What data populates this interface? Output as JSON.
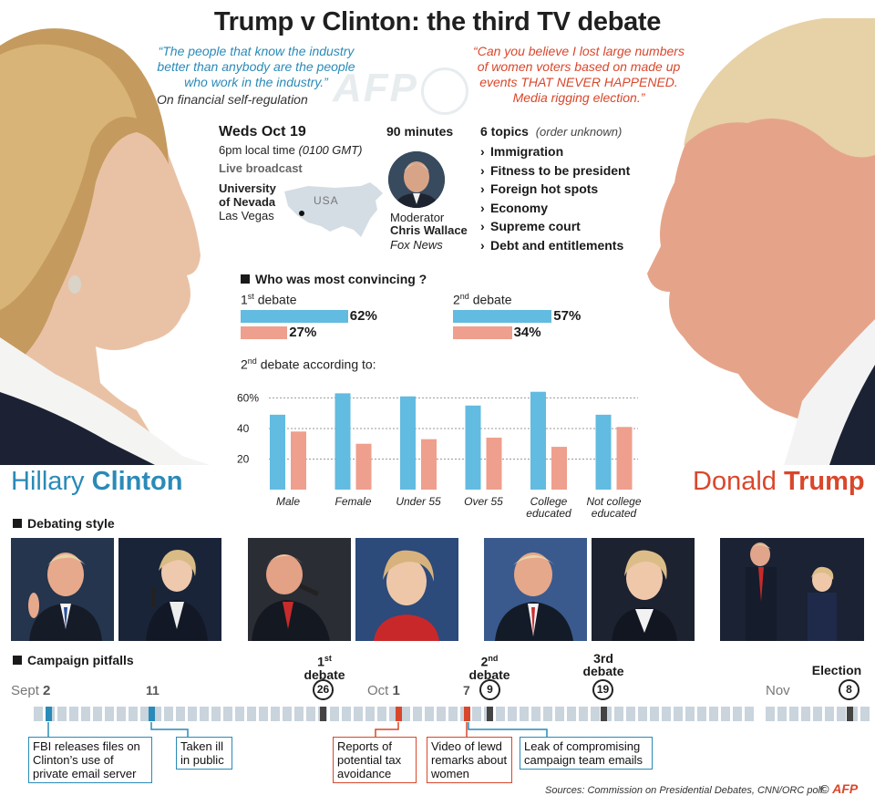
{
  "title": "Trump v Clinton: the third TV debate",
  "clinton_quote": {
    "text": "“The people that know the industry better than anybody are the people who work in the industry.”",
    "source": "On financial self-regulation"
  },
  "trump_quote": {
    "text": "“Can you believe I lost large numbers of women voters based on made up events THAT NEVER HAPPENED. Media rigging election.”"
  },
  "watermark": "AFP",
  "event": {
    "date": "Weds Oct 19",
    "time": "6pm local time",
    "time_gmt": "(0100 GMT)",
    "broadcast": "Live broadcast",
    "venue_line1": "University",
    "venue_line2": "of Nevada",
    "city": "Las Vegas",
    "map_label": "USA",
    "duration": "90 minutes",
    "moderator_label": "Moderator",
    "moderator_name": "Chris Wallace",
    "moderator_org": "Fox News"
  },
  "topics": {
    "heading": "6 topics",
    "note": "(order unknown)",
    "items": [
      "Immigration",
      "Fitness to be president",
      "Foreign hot spots",
      "Economy",
      "Supreme court",
      "Debt and entitlements"
    ]
  },
  "convincing": {
    "heading": "Who was most convincing ?",
    "first": {
      "label_num": "1",
      "label_sup": "st",
      "label_text": "debate",
      "clinton": 62,
      "trump": 27,
      "clinton_label": "62%",
      "trump_label": "27%"
    },
    "second": {
      "label_num": "2",
      "label_sup": "nd",
      "label_text": "debate",
      "clinton": 57,
      "trump": 34,
      "clinton_label": "57%",
      "trump_label": "34%"
    }
  },
  "chart_data": {
    "type": "bar",
    "title": "2nd debate according to:",
    "title_num": "2",
    "title_sup": "nd",
    "title_text": "debate according to:",
    "categories": [
      "Male",
      "Female",
      "Under 55",
      "Over 55",
      "College educated",
      "Not college educated"
    ],
    "category_lines": [
      [
        "Male"
      ],
      [
        "Female"
      ],
      [
        "Under 55"
      ],
      [
        "Over 55"
      ],
      [
        "College",
        "educated"
      ],
      [
        "Not college",
        "educated"
      ]
    ],
    "series": [
      {
        "color": "#62bbe0",
        "values": [
          49,
          63,
          61,
          55,
          64,
          49
        ]
      },
      {
        "color": "#ef9f8d",
        "values": [
          38,
          30,
          33,
          34,
          28,
          41
        ]
      }
    ],
    "yticks": [
      20,
      40,
      60
    ],
    "ytick_labels": [
      "20",
      "40",
      "60%"
    ],
    "ylim": [
      0,
      68
    ],
    "grid": true
  },
  "names": {
    "clinton_first": "Hillary",
    "clinton_last": "Clinton",
    "trump_first": "Donald",
    "trump_last": "Trump"
  },
  "debating_style": {
    "heading": "Debating style"
  },
  "pitfalls": {
    "heading": "Campaign pitfalls",
    "months": {
      "sept": "Sept",
      "oct": "Oct",
      "nov": "Nov"
    },
    "days": {
      "sept2": "2",
      "sept11": "11",
      "oct1": "1",
      "oct7": "7"
    },
    "debates": [
      {
        "label_num": "1",
        "label_sup": "st",
        "label_text": "debate",
        "day": "26"
      },
      {
        "label_num": "2",
        "label_sup": "nd",
        "label_text": "debate",
        "day": "9"
      },
      {
        "label_text": "3rd",
        "label_text2": "debate",
        "day": "19"
      }
    ],
    "election": {
      "label": "Election",
      "day": "8"
    },
    "callouts": [
      "FBI releases files on Clinton’s use of private email server",
      "Taken ill in public",
      "Reports of potential tax avoidance",
      "Video of lewd remarks about women",
      "Leak of compromising campaign team emails"
    ]
  },
  "sources": "Sources: Commission on Presidential Debates, CNN/ORC poll",
  "copyright": "©",
  "colors": {
    "clinton": "#2a8ab8",
    "trump": "#d9472b",
    "bar_blue": "#62bbe0",
    "bar_red": "#ef9f8d",
    "timeline": "#c9d4dd"
  }
}
